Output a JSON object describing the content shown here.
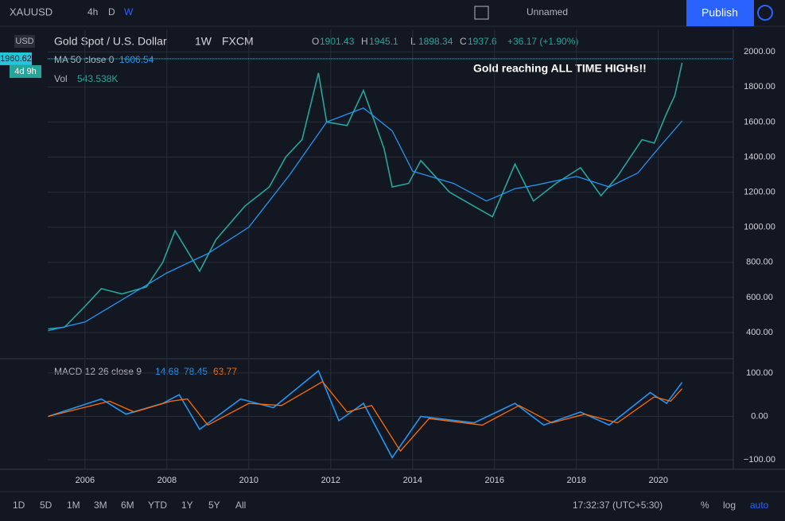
{
  "toolbar": {
    "symbol": "XAUUSD",
    "intervals": [
      "4h",
      "D",
      "W"
    ],
    "layout_name": "Unnamed",
    "publish": "Publish"
  },
  "legend": {
    "title": "Gold Spot / U.S. Dollar",
    "interval": "1W",
    "source": "FXCM",
    "ohlc": [
      {
        "label": "O",
        "value": 1901.43
      },
      {
        "label": "H",
        "value": 1945.1
      },
      {
        "label": "L",
        "value": 1898.34
      },
      {
        "label": "C",
        "value": 1937.6
      }
    ],
    "change": "+36.17 (+1.90%)",
    "ma_label": "MA 50 close 0",
    "ma_value": 1606.54,
    "vol_label": "Vol",
    "vol_value": "543.538K",
    "macd_label": "MACD 12 26 close 9",
    "macd_values": [
      14.68,
      78.45,
      63.77
    ]
  },
  "currency": "USD",
  "last_price": 1960.62,
  "countdown": "4d 9h",
  "annotation": "Gold reaching ALL TIME HIGHs!!",
  "price_chart": {
    "type": "line",
    "xlim": [
      2005.09,
      2021.83
    ],
    "ylim": [
      255,
      2128
    ],
    "yticks": [
      {
        "value": 400,
        "label": "400.00"
      },
      {
        "value": 600,
        "label": "600.00"
      },
      {
        "value": 800,
        "label": "800.00"
      },
      {
        "value": 1000,
        "label": "1000.00"
      },
      {
        "value": 1200,
        "label": "1200.00"
      },
      {
        "value": 1400,
        "label": "1400.00"
      },
      {
        "value": 1600,
        "label": "1600.00"
      },
      {
        "value": 1800,
        "label": "1800.00"
      },
      {
        "value": 2000,
        "label": "2000.00"
      }
    ],
    "xticks": [
      2006,
      2008,
      2010,
      2012,
      2014,
      2016,
      2018,
      2020
    ],
    "grid": true,
    "series": [
      {
        "name": "Gold Spot / U.S. Dollar",
        "color": "#26a69a",
        "x": [
          2005.1,
          2005.5,
          2006.0,
          2006.4,
          2006.9,
          2007.5,
          2007.9,
          2008.2,
          2008.8,
          2009.2,
          2009.9,
          2010.5,
          2010.9,
          2011.3,
          2011.7,
          2011.9,
          2012.4,
          2012.8,
          2013.3,
          2013.5,
          2013.9,
          2014.2,
          2014.9,
          2015.5,
          2015.95,
          2016.5,
          2016.95,
          2017.5,
          2018.1,
          2018.6,
          2019.0,
          2019.6,
          2019.9,
          2020.2,
          2020.4,
          2020.58
        ],
        "values": [
          420,
          430,
          550,
          650,
          620,
          660,
          800,
          980,
          750,
          930,
          1120,
          1230,
          1400,
          1500,
          1880,
          1600,
          1580,
          1780,
          1450,
          1230,
          1250,
          1380,
          1200,
          1120,
          1060,
          1360,
          1150,
          1250,
          1340,
          1180,
          1290,
          1500,
          1480,
          1650,
          1750,
          1937.6
        ]
      },
      {
        "name": "MA 50 close 0",
        "color": "#2196f3",
        "x": [
          2005.1,
          2006.0,
          2007.0,
          2008.0,
          2009.0,
          2010.0,
          2011.0,
          2011.9,
          2012.8,
          2013.5,
          2014.0,
          2015.0,
          2015.8,
          2016.5,
          2017.0,
          2018.0,
          2018.8,
          2019.5,
          2020.0,
          2020.58
        ],
        "values": [
          410,
          460,
          600,
          740,
          850,
          1000,
          1300,
          1600,
          1680,
          1550,
          1320,
          1250,
          1150,
          1220,
          1240,
          1290,
          1230,
          1310,
          1450,
          1606.54
        ]
      }
    ]
  },
  "macd_chart": {
    "type": "line",
    "xlim": [
      2005.09,
      2021.83
    ],
    "ylim": [
      -122,
      131
    ],
    "yticks": [
      {
        "value": 100,
        "label": "100.00"
      },
      {
        "value": 0,
        "label": "0.00"
      },
      {
        "value": -100,
        "label": "−100.00"
      }
    ],
    "grid": true,
    "series": [
      {
        "name": "MACD",
        "color": "#2196f3",
        "x": [
          2005.1,
          2006.4,
          2007.0,
          2007.9,
          2008.3,
          2008.8,
          2009.8,
          2010.6,
          2011.7,
          2012.2,
          2012.8,
          2013.5,
          2014.2,
          2015.5,
          2016.5,
          2017.2,
          2018.1,
          2018.8,
          2019.8,
          2020.2,
          2020.58
        ],
        "values": [
          0,
          40,
          5,
          30,
          50,
          -30,
          40,
          20,
          105,
          -10,
          30,
          -95,
          0,
          -15,
          30,
          -20,
          10,
          -20,
          55,
          30,
          78.45
        ]
      },
      {
        "name": "Signal",
        "color": "#ff6d00",
        "x": [
          2005.1,
          2006.6,
          2007.2,
          2008.1,
          2008.5,
          2009.0,
          2010.0,
          2010.8,
          2011.8,
          2012.4,
          2013.0,
          2013.7,
          2014.4,
          2015.7,
          2016.6,
          2017.4,
          2018.2,
          2019.0,
          2019.9,
          2020.3,
          2020.58
        ],
        "values": [
          0,
          35,
          10,
          35,
          40,
          -20,
          30,
          25,
          80,
          10,
          25,
          -80,
          -5,
          -20,
          25,
          -15,
          5,
          -15,
          45,
          35,
          63.77
        ]
      }
    ]
  },
  "bottom_bar": {
    "ranges": [
      "1D",
      "5D",
      "1M",
      "3M",
      "6M",
      "YTD",
      "1Y",
      "5Y",
      "All"
    ],
    "time": "17:32:37 (UTC+5:30)",
    "options": [
      "%",
      "log",
      "auto"
    ]
  }
}
